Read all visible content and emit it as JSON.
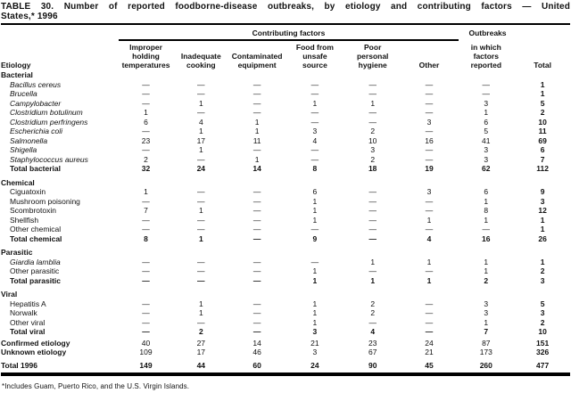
{
  "title_lines": [
    "TABLE 30. Number of reported foodborne-disease outbreaks, by etiology and contributing factors — United",
    "States,* 1996"
  ],
  "table": {
    "etiology_header": "Etiology",
    "contributing_factors_label": "Contributing factors",
    "outbreaks_top_label": "Outbreaks",
    "columns": [
      [
        "Improper",
        "holding",
        "temperatures"
      ],
      [
        "Inadequate",
        "cooking"
      ],
      [
        "Contaminated",
        "equipment"
      ],
      [
        "Food from",
        "unsafe",
        "source"
      ],
      [
        "Poor",
        "personal",
        "hygiene"
      ],
      [
        "Other"
      ],
      [
        "in which",
        "factors",
        "reported"
      ],
      [
        "Total"
      ]
    ],
    "sections": [
      {
        "header": "Bacterial",
        "rows": [
          {
            "label": "Bacillus cereus",
            "italic": true,
            "bold": false,
            "values": [
              "—",
              "—",
              "—",
              "—",
              "—",
              "—",
              "—",
              "1"
            ]
          },
          {
            "label": "Brucella",
            "italic": true,
            "bold": false,
            "values": [
              "—",
              "—",
              "—",
              "—",
              "—",
              "—",
              "—",
              "1"
            ]
          },
          {
            "label": "Campylobacter",
            "italic": true,
            "bold": false,
            "values": [
              "—",
              "1",
              "—",
              "1",
              "1",
              "—",
              "3",
              "5"
            ]
          },
          {
            "label": "Clostridium botulinum",
            "italic": true,
            "bold": false,
            "values": [
              "1",
              "—",
              "—",
              "—",
              "—",
              "—",
              "1",
              "2"
            ]
          },
          {
            "label": "Clostridium perfringens",
            "italic": true,
            "bold": false,
            "values": [
              "6",
              "4",
              "1",
              "—",
              "—",
              "3",
              "6",
              "10"
            ]
          },
          {
            "label": "Escherichia coli",
            "italic": true,
            "bold": false,
            "values": [
              "—",
              "1",
              "1",
              "3",
              "2",
              "—",
              "5",
              "11"
            ]
          },
          {
            "label": "Salmonella",
            "italic": true,
            "bold": false,
            "values": [
              "23",
              "17",
              "11",
              "4",
              "10",
              "16",
              "41",
              "69"
            ]
          },
          {
            "label": "Shigella",
            "italic": true,
            "bold": false,
            "values": [
              "—",
              "1",
              "—",
              "—",
              "3",
              "—",
              "3",
              "6"
            ]
          },
          {
            "label": "Staphylococcus aureus",
            "italic": true,
            "bold": false,
            "values": [
              "2",
              "—",
              "1",
              "—",
              "2",
              "—",
              "3",
              "7"
            ]
          },
          {
            "label": "Total bacterial",
            "italic": false,
            "bold": true,
            "values": [
              "32",
              "24",
              "14",
              "8",
              "18",
              "19",
              "62",
              "112"
            ]
          }
        ]
      },
      {
        "header": "Chemical",
        "rows": [
          {
            "label": "Ciguatoxin",
            "italic": false,
            "bold": false,
            "values": [
              "1",
              "—",
              "—",
              "6",
              "—",
              "3",
              "6",
              "9"
            ]
          },
          {
            "label": "Mushroom poisoning",
            "italic": false,
            "bold": false,
            "values": [
              "—",
              "—",
              "—",
              "1",
              "—",
              "—",
              "1",
              "3"
            ]
          },
          {
            "label": "Scombrotoxin",
            "italic": false,
            "bold": false,
            "values": [
              "7",
              "1",
              "—",
              "1",
              "—",
              "—",
              "8",
              "12"
            ]
          },
          {
            "label": "Shellfish",
            "italic": false,
            "bold": false,
            "values": [
              "—",
              "—",
              "—",
              "1",
              "—",
              "1",
              "1",
              "1"
            ]
          },
          {
            "label": "Other chemical",
            "italic": false,
            "bold": false,
            "values": [
              "—",
              "—",
              "—",
              "—",
              "—",
              "—",
              "—",
              "1"
            ]
          },
          {
            "label": "Total chemical",
            "italic": false,
            "bold": true,
            "values": [
              "8",
              "1",
              "—",
              "9",
              "—",
              "4",
              "16",
              "26"
            ]
          }
        ]
      },
      {
        "header": "Parasitic",
        "rows": [
          {
            "label": "Giardia lamblia",
            "italic": true,
            "bold": false,
            "values": [
              "—",
              "—",
              "—",
              "—",
              "1",
              "1",
              "1",
              "1"
            ]
          },
          {
            "label": "Other parasitic",
            "italic": false,
            "bold": false,
            "values": [
              "—",
              "—",
              "—",
              "1",
              "—",
              "—",
              "1",
              "2"
            ]
          },
          {
            "label": "Total parasitic",
            "italic": false,
            "bold": true,
            "values": [
              "—",
              "—",
              "—",
              "1",
              "1",
              "1",
              "2",
              "3"
            ]
          }
        ]
      },
      {
        "header": "Viral",
        "rows": [
          {
            "label": "Hepatitis A",
            "italic": false,
            "bold": false,
            "values": [
              "—",
              "1",
              "—",
              "1",
              "2",
              "—",
              "3",
              "5"
            ]
          },
          {
            "label": "Norwalk",
            "italic": false,
            "bold": false,
            "values": [
              "—",
              "1",
              "—",
              "1",
              "2",
              "—",
              "3",
              "3"
            ]
          },
          {
            "label": "Other viral",
            "italic": false,
            "bold": false,
            "values": [
              "—",
              "—",
              "—",
              "1",
              "—",
              "—",
              "1",
              "2"
            ]
          },
          {
            "label": "Total viral",
            "italic": false,
            "bold": true,
            "values": [
              "—",
              "2",
              "—",
              "3",
              "4",
              "—",
              "7",
              "10"
            ]
          }
        ]
      }
    ],
    "footer_rows": [
      {
        "label": "Confirmed etiology",
        "label_bold": true,
        "bold": false,
        "values": [
          "40",
          "27",
          "14",
          "21",
          "23",
          "24",
          "87",
          "151"
        ]
      },
      {
        "label": "Unknown etiology",
        "label_bold": true,
        "bold": false,
        "values": [
          "109",
          "17",
          "46",
          "3",
          "67",
          "21",
          "173",
          "326"
        ]
      }
    ],
    "grand_total_row": {
      "label": "Total 1996",
      "bold": true,
      "values": [
        "149",
        "44",
        "60",
        "24",
        "90",
        "45",
        "260",
        "477"
      ]
    }
  },
  "footnote": "*Includes Guam, Puerto Rico, and the U.S. Virgin Islands."
}
